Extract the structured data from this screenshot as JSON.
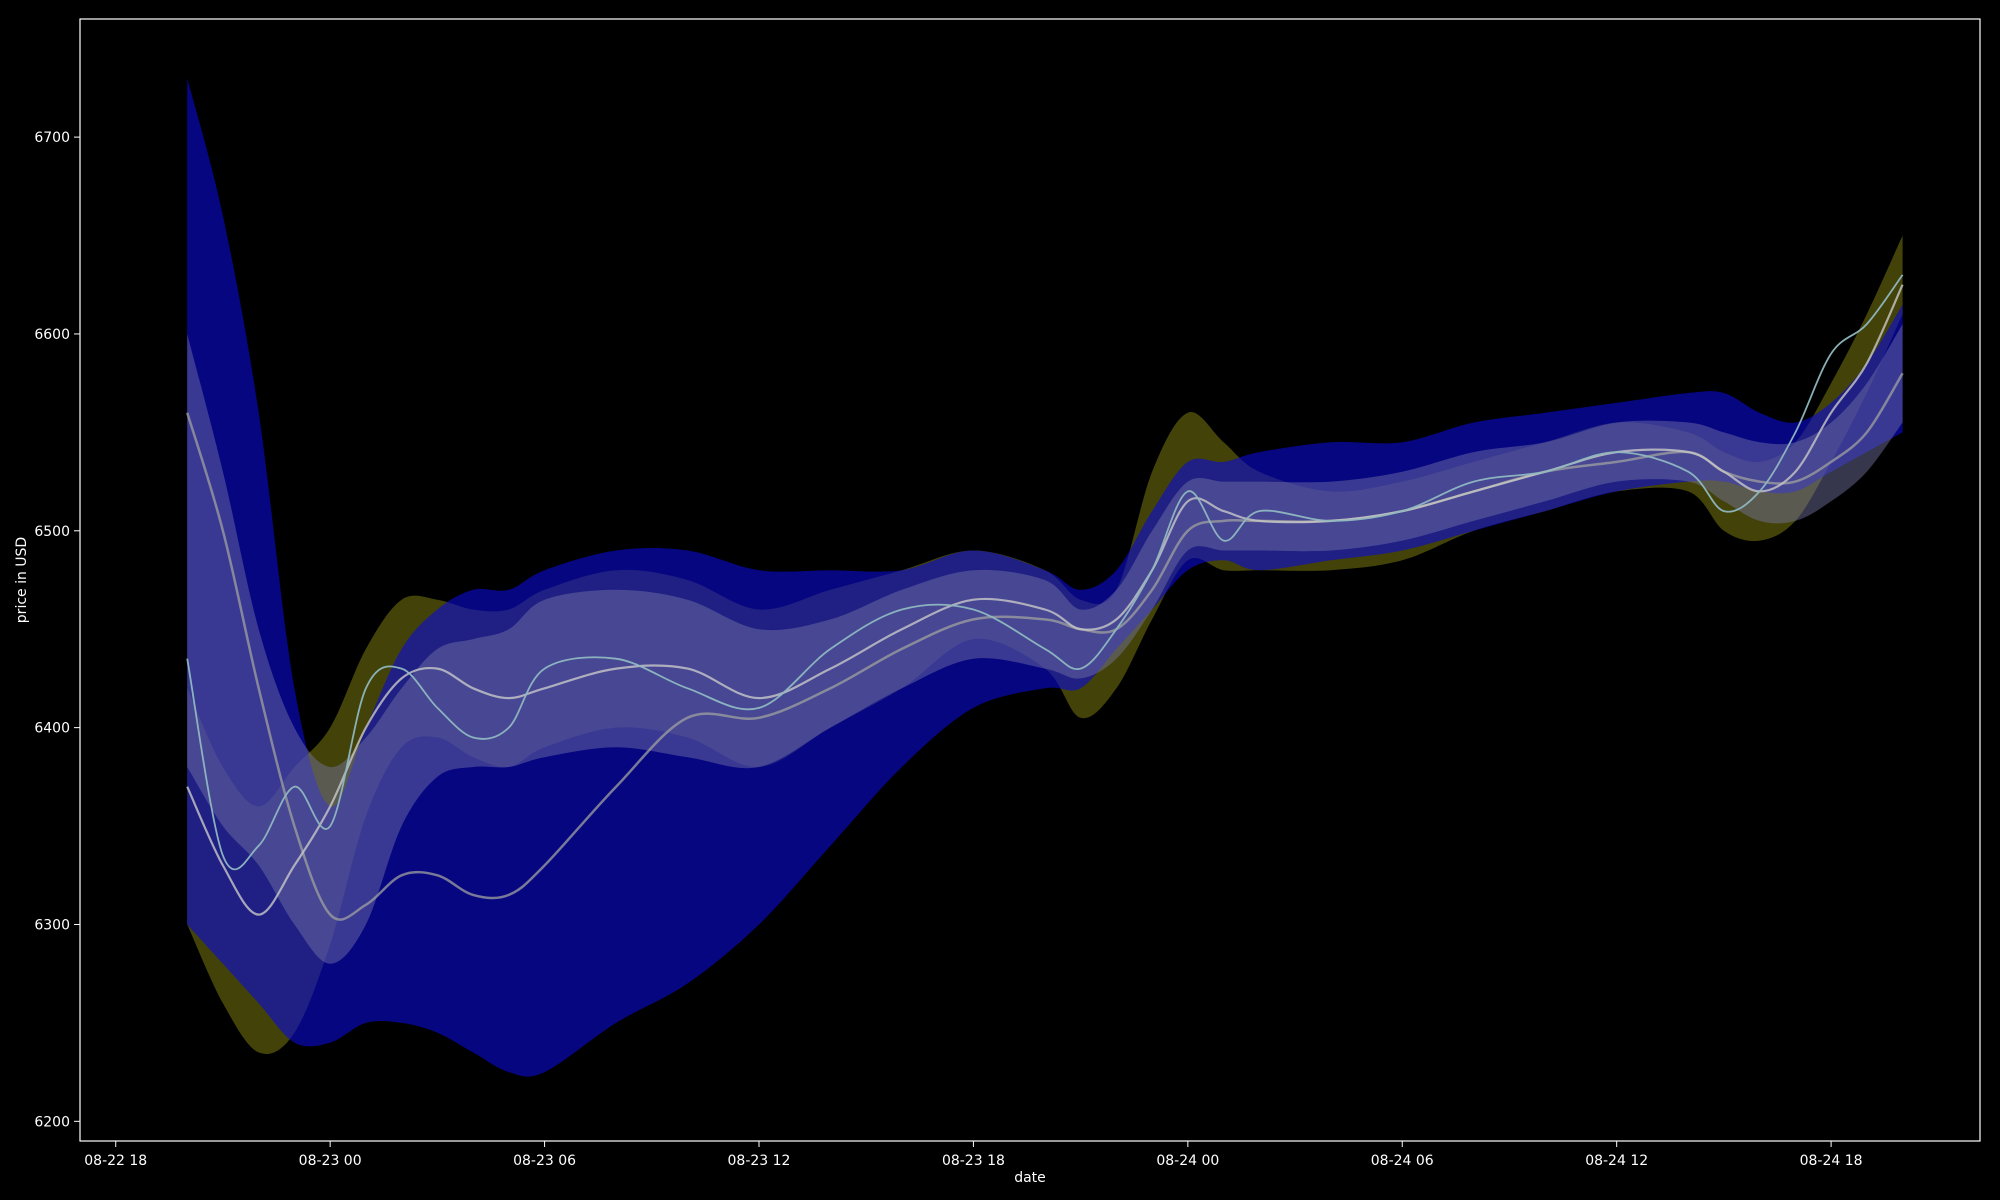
{
  "chart_data": {
    "type": "line",
    "title": "",
    "xlabel": "date",
    "ylabel": "price in USD",
    "background": "#000000",
    "grid": false,
    "xlim": [
      "2018-08-22 17:00",
      "2018-08-24 22:10"
    ],
    "ylim": [
      6190,
      6760
    ],
    "x_ticks": [
      "08-22 18",
      "08-23 00",
      "08-23 06",
      "08-23 12",
      "08-23 18",
      "08-24 00",
      "08-24 06",
      "08-24 12",
      "08-24 18"
    ],
    "y_ticks": [
      6200,
      6300,
      6400,
      6500,
      6600,
      6700
    ],
    "colors": {
      "price": "#8fb8c0",
      "fast_ma": "#c8c8c8",
      "slow_ma": "#a0a0a0",
      "outer_band": "#0a0ad0",
      "inner_band": "#7878a8",
      "yellow_band": "#7a7a10"
    },
    "x": [
      "2018-08-22 20:00",
      "2018-08-22 21:00",
      "2018-08-22 22:00",
      "2018-08-22 23:00",
      "2018-08-23 00:00",
      "2018-08-23 01:00",
      "2018-08-23 02:00",
      "2018-08-23 03:00",
      "2018-08-23 04:00",
      "2018-08-23 05:00",
      "2018-08-23 06:00",
      "2018-08-23 08:00",
      "2018-08-23 10:00",
      "2018-08-23 12:00",
      "2018-08-23 14:00",
      "2018-08-23 16:00",
      "2018-08-23 18:00",
      "2018-08-23 20:00",
      "2018-08-23 21:00",
      "2018-08-23 22:00",
      "2018-08-23 23:00",
      "2018-08-24 00:00",
      "2018-08-24 01:00",
      "2018-08-24 02:00",
      "2018-08-24 04:00",
      "2018-08-24 06:00",
      "2018-08-24 08:00",
      "2018-08-24 10:00",
      "2018-08-24 12:00",
      "2018-08-24 14:00",
      "2018-08-24 15:00",
      "2018-08-24 16:00",
      "2018-08-24 17:00",
      "2018-08-24 18:00",
      "2018-08-24 19:00",
      "2018-08-24 20:00"
    ],
    "series": [
      {
        "role": "price",
        "values": [
          6435,
          6335,
          6340,
          6370,
          6350,
          6420,
          6430,
          6410,
          6395,
          6400,
          6430,
          6435,
          6420,
          6410,
          6440,
          6460,
          6460,
          6440,
          6430,
          6450,
          6480,
          6520,
          6495,
          6510,
          6505,
          6510,
          6525,
          6530,
          6540,
          6530,
          6510,
          6520,
          6550,
          6590,
          6605,
          6630
        ]
      },
      {
        "role": "fast_ma",
        "values": [
          6370,
          6330,
          6305,
          6330,
          6360,
          6400,
          6425,
          6430,
          6420,
          6415,
          6420,
          6430,
          6430,
          6415,
          6430,
          6450,
          6465,
          6460,
          6450,
          6455,
          6480,
          6515,
          6510,
          6505,
          6505,
          6510,
          6520,
          6530,
          6540,
          6540,
          6530,
          6520,
          6530,
          6560,
          6585,
          6625
        ]
      },
      {
        "role": "slow_ma",
        "values": [
          6560,
          6500,
          6420,
          6350,
          6305,
          6310,
          6325,
          6325,
          6315,
          6315,
          6330,
          6370,
          6405,
          6405,
          6420,
          6440,
          6455,
          6455,
          6450,
          6450,
          6470,
          6500,
          6505,
          6505,
          6505,
          6510,
          6520,
          6530,
          6535,
          6540,
          6530,
          6525,
          6525,
          6535,
          6550,
          6580
        ]
      },
      {
        "role": "outer_band_upper",
        "values": [
          6730,
          6660,
          6560,
          6420,
          6360,
          6400,
          6440,
          6460,
          6470,
          6470,
          6480,
          6490,
          6490,
          6480,
          6480,
          6480,
          6490,
          6480,
          6470,
          6480,
          6510,
          6535,
          6535,
          6540,
          6545,
          6545,
          6555,
          6560,
          6565,
          6570,
          6570,
          6560,
          6555,
          6565,
          6585,
          6615
        ]
      },
      {
        "role": "outer_band_lower",
        "values": [
          6300,
          6280,
          6260,
          6240,
          6240,
          6250,
          6250,
          6245,
          6235,
          6225,
          6225,
          6250,
          6270,
          6300,
          6340,
          6380,
          6410,
          6420,
          6420,
          6440,
          6460,
          6480,
          6485,
          6480,
          6485,
          6490,
          6500,
          6510,
          6520,
          6525,
          6525,
          6520,
          6520,
          6530,
          6540,
          6550
        ]
      },
      {
        "role": "inner_band_upper",
        "values": [
          6600,
          6530,
          6450,
          6400,
          6380,
          6395,
          6420,
          6440,
          6445,
          6450,
          6465,
          6470,
          6465,
          6450,
          6455,
          6470,
          6480,
          6475,
          6460,
          6470,
          6500,
          6525,
          6525,
          6525,
          6525,
          6530,
          6540,
          6545,
          6555,
          6555,
          6550,
          6545,
          6545,
          6555,
          6575,
          6605
        ]
      },
      {
        "role": "inner_band_lower",
        "values": [
          6380,
          6350,
          6330,
          6300,
          6280,
          6300,
          6350,
          6375,
          6380,
          6380,
          6385,
          6390,
          6385,
          6380,
          6400,
          6420,
          6435,
          6430,
          6425,
          6435,
          6460,
          6490,
          6490,
          6490,
          6490,
          6495,
          6505,
          6515,
          6525,
          6525,
          6515,
          6505,
          6505,
          6515,
          6530,
          6555
        ]
      },
      {
        "role": "yellow_band_upper",
        "values": [
          6420,
          6380,
          6360,
          6380,
          6400,
          6440,
          6465,
          6465,
          6460,
          6460,
          6470,
          6480,
          6475,
          6460,
          6470,
          6480,
          6490,
          6480,
          6465,
          6470,
          6530,
          6560,
          6545,
          6530,
          6520,
          6525,
          6535,
          6545,
          6555,
          6550,
          6540,
          6535,
          6545,
          6575,
          6610,
          6650
        ]
      },
      {
        "role": "yellow_band_lower",
        "values": [
          6300,
          6260,
          6235,
          6245,
          6290,
          6355,
          6390,
          6395,
          6385,
          6380,
          6390,
          6400,
          6395,
          6380,
          6400,
          6420,
          6445,
          6430,
          6405,
          6420,
          6455,
          6485,
          6480,
          6480,
          6480,
          6485,
          6500,
          6510,
          6520,
          6520,
          6500,
          6495,
          6505,
          6535,
          6570,
          6610
        ]
      }
    ]
  }
}
